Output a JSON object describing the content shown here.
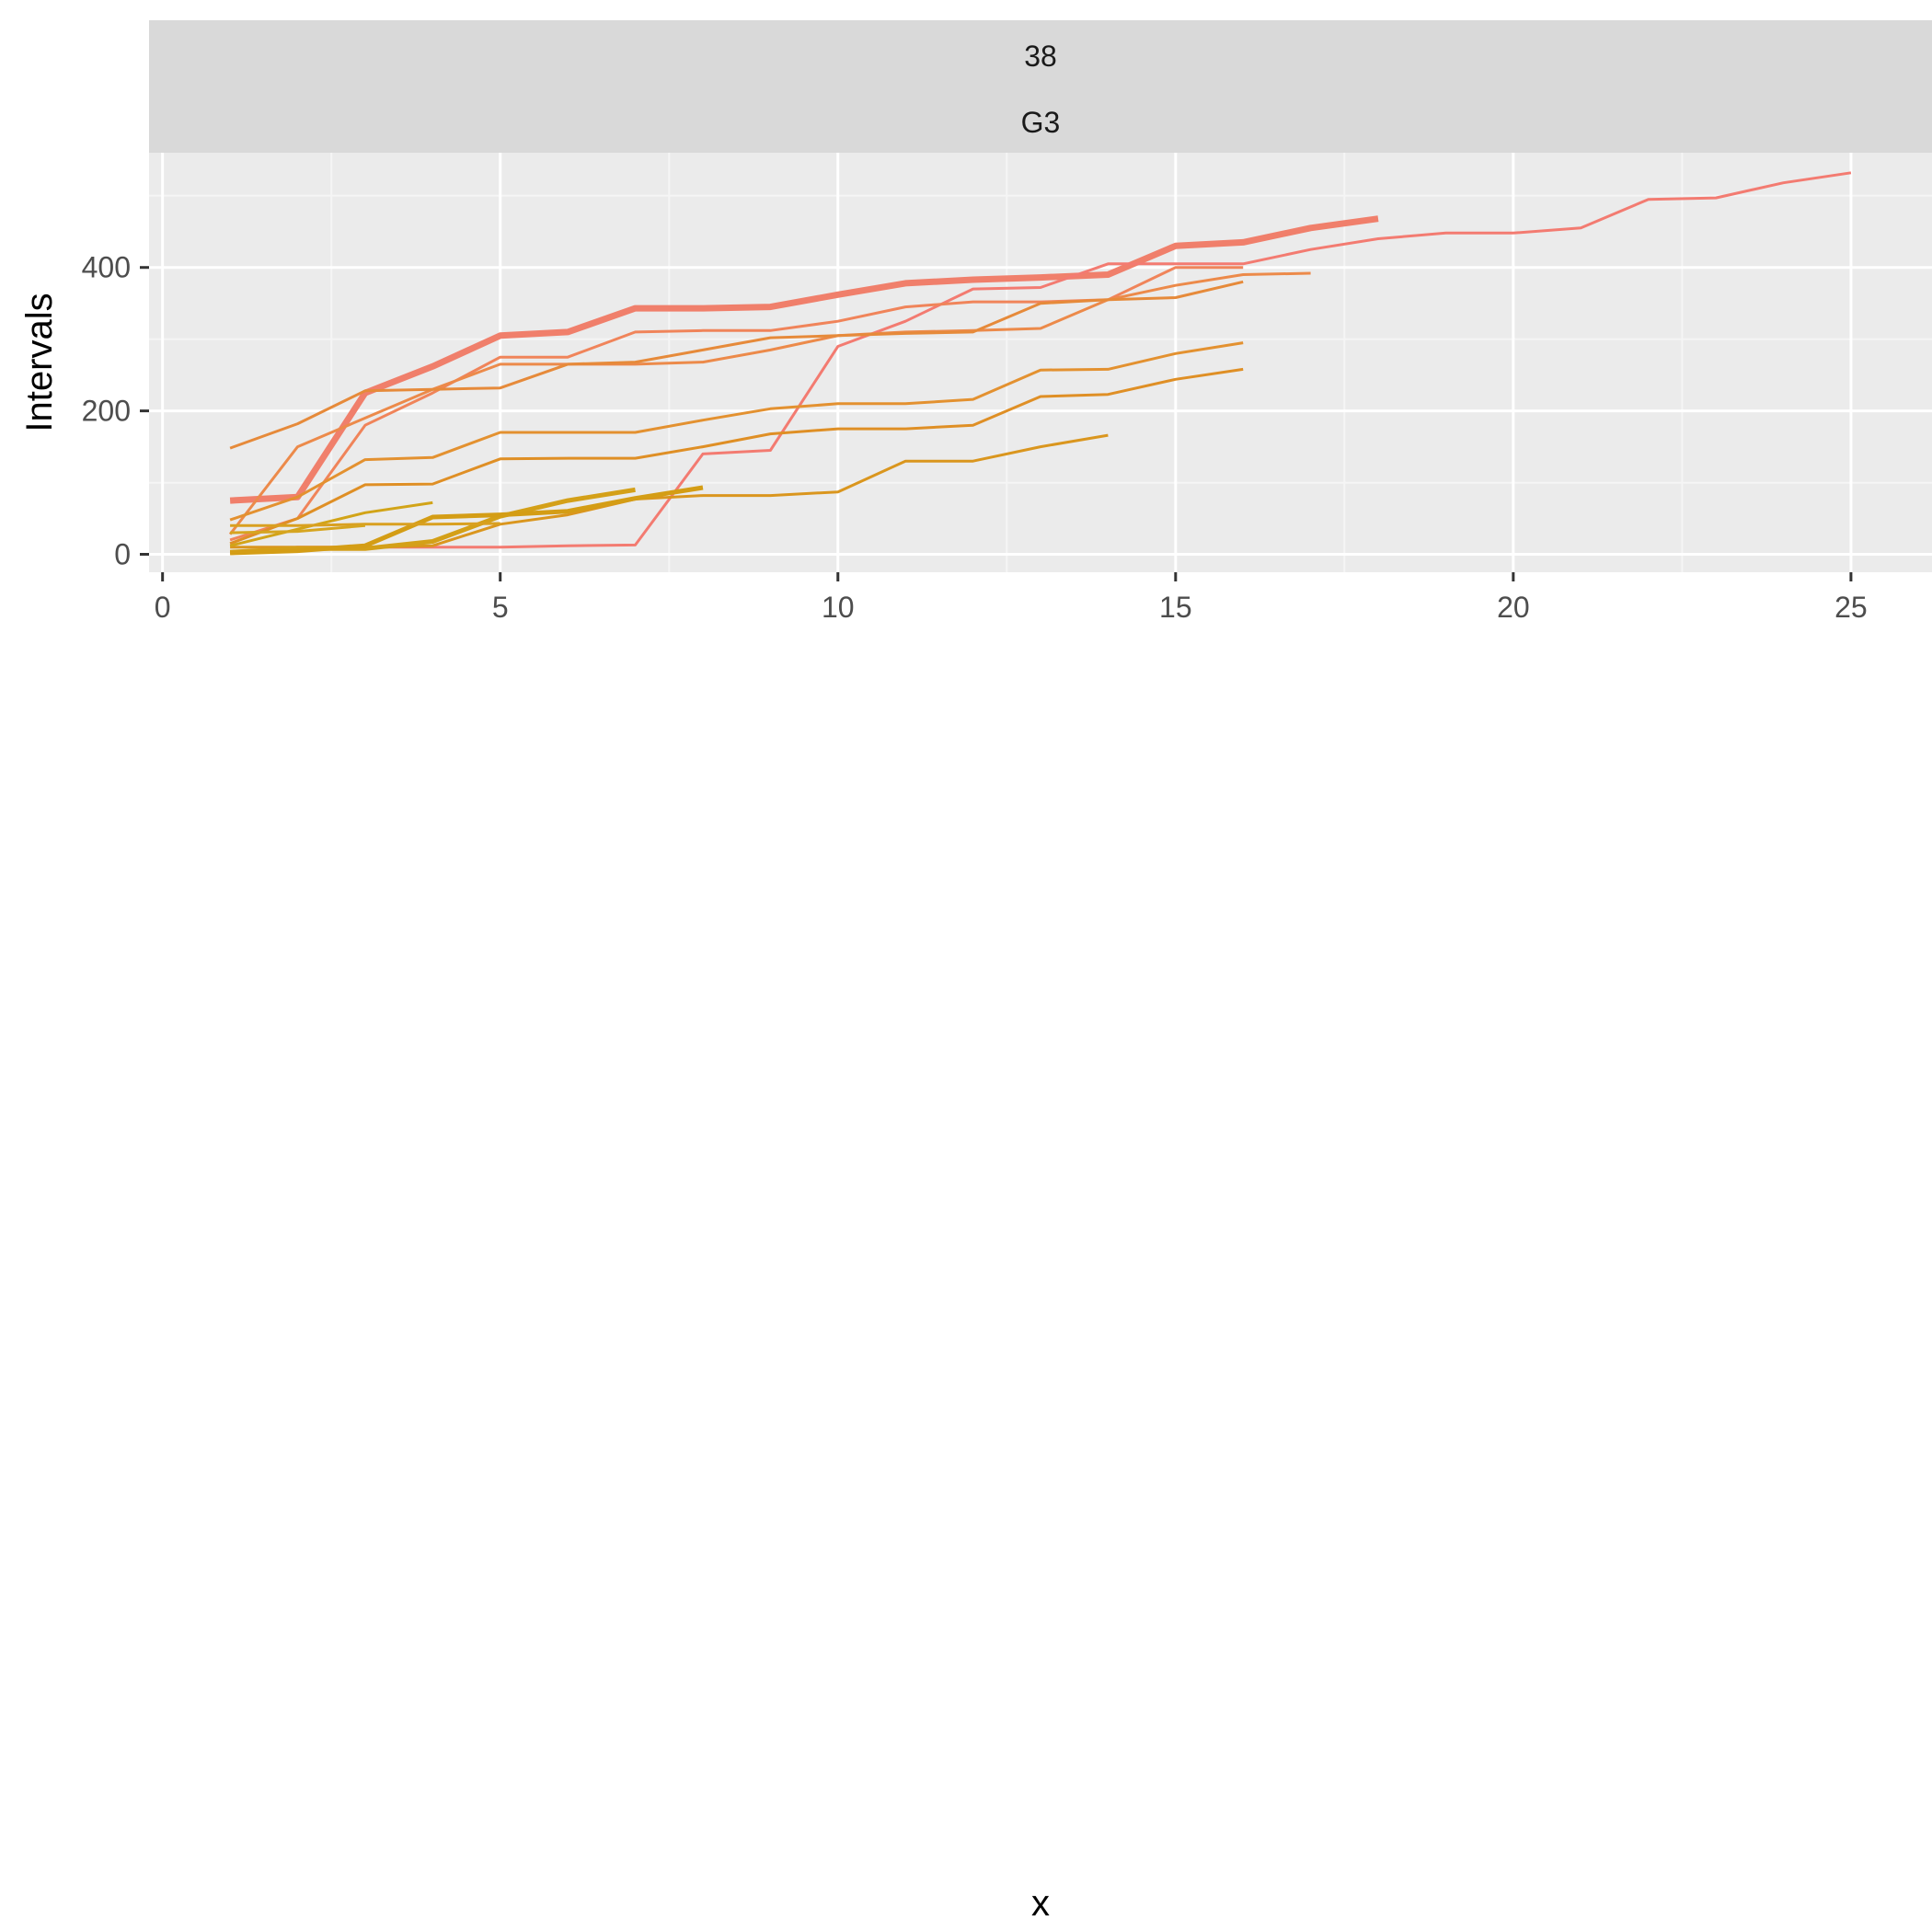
{
  "chart_data": {
    "type": "line",
    "facet_labels": [
      "38",
      "G3"
    ],
    "xlabel": "x",
    "ylabel": "Intervals",
    "xlim": [
      -0.2,
      26.2
    ],
    "ylim": [
      -25,
      560
    ],
    "x_ticks": [
      0,
      5,
      10,
      15,
      20,
      25
    ],
    "y_ticks": [
      0,
      200,
      400
    ],
    "grid": true,
    "legend": "none",
    "colors": {
      "panel_bg": "#EBEBEB",
      "strip_bg": "#D9D9D9",
      "grid_major": "#FFFFFF",
      "grid_minor": "#F5F5F5",
      "tick": "#333333"
    },
    "series": [
      {
        "color": "#F07F6B",
        "width": 7,
        "x": [
          1,
          2,
          3,
          4,
          5,
          6,
          7,
          8,
          9,
          10,
          11,
          12,
          13,
          14,
          15,
          16,
          17,
          18
        ],
        "y": [
          75,
          80,
          225,
          262,
          305,
          310,
          343,
          343,
          345,
          362,
          378,
          383,
          386,
          390,
          430,
          435,
          455,
          468
        ]
      },
      {
        "color": "#F37B71",
        "width": 3,
        "x": [
          1,
          2,
          3,
          4,
          5,
          6,
          7,
          8,
          9,
          10,
          11,
          12,
          13,
          14,
          15,
          16,
          17,
          18,
          19,
          20,
          21,
          22,
          23,
          24,
          25
        ],
        "y": [
          2,
          10,
          10,
          10,
          10,
          12,
          13,
          140,
          145,
          290,
          325,
          370,
          372,
          405,
          405,
          405,
          425,
          440,
          448,
          448,
          455,
          495,
          497,
          518,
          532
        ]
      },
      {
        "color": "#F0845A",
        "width": 3,
        "x": [
          1,
          2,
          3,
          4,
          5,
          6,
          7,
          8,
          9,
          10,
          11,
          12,
          13,
          14,
          15,
          16
        ],
        "y": [
          20,
          50,
          180,
          225,
          275,
          275,
          310,
          312,
          312,
          325,
          345,
          352,
          352,
          355,
          400,
          400
        ]
      },
      {
        "color": "#EC8A4A",
        "width": 3,
        "x": [
          1,
          2,
          3,
          4,
          5,
          6,
          7,
          8,
          9,
          10,
          11,
          12,
          13,
          14,
          15,
          16,
          17
        ],
        "y": [
          28,
          150,
          190,
          230,
          265,
          265,
          265,
          268,
          285,
          305,
          310,
          312,
          315,
          355,
          375,
          390,
          392
        ]
      },
      {
        "color": "#E68A3A",
        "width": 3,
        "x": [
          1,
          2,
          3,
          4,
          5,
          6,
          7,
          8,
          9,
          10,
          11,
          12,
          13,
          14,
          15,
          16
        ],
        "y": [
          148,
          182,
          228,
          230,
          232,
          265,
          268,
          285,
          302,
          305,
          308,
          310,
          350,
          355,
          358,
          380
        ]
      },
      {
        "color": "#E39130",
        "width": 3,
        "x": [
          1,
          2,
          3,
          4,
          5,
          6,
          7,
          8,
          9,
          10,
          11,
          12,
          13,
          14,
          15,
          16
        ],
        "y": [
          48,
          80,
          132,
          135,
          170,
          170,
          170,
          187,
          203,
          210,
          210,
          216,
          257,
          258,
          280,
          295
        ]
      },
      {
        "color": "#DF8F25",
        "width": 3,
        "x": [
          1,
          2,
          3,
          4,
          5,
          6,
          7,
          8,
          9,
          10,
          11,
          12,
          13,
          14,
          15,
          16
        ],
        "y": [
          15,
          50,
          97,
          98,
          133,
          134,
          134,
          150,
          168,
          175,
          175,
          180,
          220,
          223,
          244,
          258
        ]
      },
      {
        "color": "#DA961E",
        "width": 3,
        "x": [
          1,
          2,
          3,
          4,
          5,
          6,
          7,
          8,
          9,
          10,
          11,
          12,
          13,
          14
        ],
        "y": [
          10,
          10,
          10,
          12,
          42,
          55,
          77,
          82,
          82,
          87,
          130,
          130,
          150,
          166
        ]
      },
      {
        "color": "#D4A018",
        "width": 5,
        "x": [
          1,
          2,
          3,
          4,
          5,
          6,
          7
        ],
        "y": [
          3,
          8,
          8,
          18,
          53,
          75,
          90
        ]
      },
      {
        "color": "#D49D15",
        "width": 5,
        "x": [
          1,
          2,
          3,
          4,
          5,
          6,
          7,
          8
        ],
        "y": [
          2,
          5,
          12,
          52,
          55,
          60,
          78,
          93
        ]
      },
      {
        "color": "#D2A418",
        "width": 3,
        "x": [
          1,
          2,
          3,
          4
        ],
        "y": [
          12,
          35,
          58,
          72
        ]
      },
      {
        "color": "#D9A020",
        "width": 3,
        "x": [
          1,
          2,
          3,
          4,
          5
        ],
        "y": [
          40,
          40,
          42,
          42,
          43
        ]
      },
      {
        "color": "#D6A520",
        "width": 3,
        "x": [
          1,
          2,
          3
        ],
        "y": [
          30,
          32,
          40
        ]
      }
    ]
  }
}
